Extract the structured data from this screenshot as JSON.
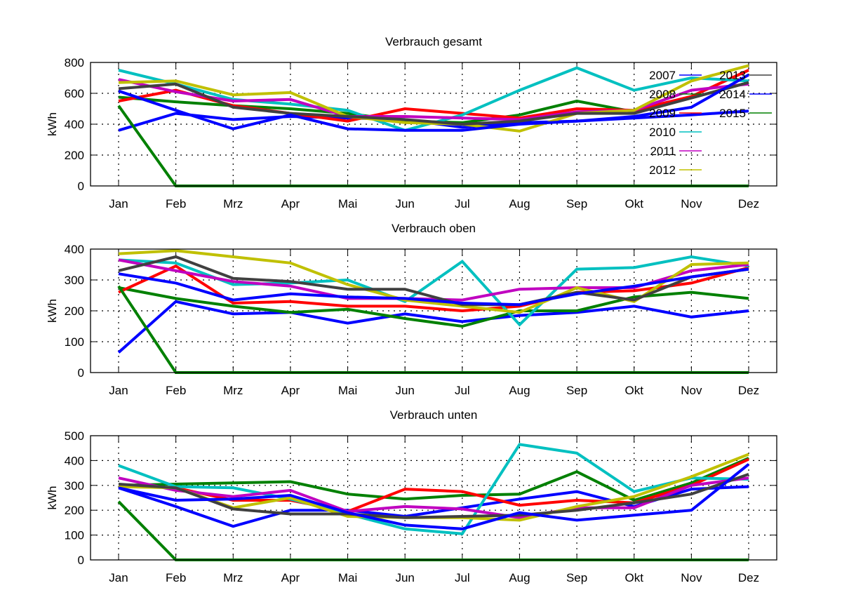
{
  "chart_data": [
    {
      "type": "line",
      "title": "Verbrauch gesamt",
      "ylabel": "kWh",
      "ylim": [
        0,
        800
      ],
      "yticks": [
        0,
        200,
        400,
        600,
        800
      ],
      "grid": true,
      "legend_position": "top-right",
      "categories": [
        "Jan",
        "Feb",
        "Mrz",
        "Apr",
        "Mai",
        "Jun",
        "Jul",
        "Aug",
        "Sep",
        "Okt",
        "Nov",
        "Dez"
      ],
      "series": [
        {
          "name": "2007",
          "color": "#0000ff",
          "values": [
            360,
            470,
            430,
            450,
            440,
            430,
            380,
            410,
            420,
            440,
            460,
            485
          ]
        },
        {
          "name": "2008",
          "color": "#008000",
          "values": [
            575,
            545,
            520,
            500,
            470,
            420,
            410,
            460,
            550,
            480,
            570,
            670
          ]
        },
        {
          "name": "2009",
          "color": "#ff0000",
          "values": [
            550,
            620,
            520,
            470,
            420,
            500,
            470,
            440,
            500,
            490,
            580,
            750
          ]
        },
        {
          "name": "2010",
          "color": "#00c0c0",
          "values": [
            750,
            660,
            560,
            530,
            490,
            360,
            460,
            620,
            765,
            620,
            700,
            680
          ]
        },
        {
          "name": "2011",
          "color": "#c000c0",
          "values": [
            690,
            610,
            550,
            560,
            450,
            450,
            440,
            430,
            480,
            490,
            620,
            660
          ]
        },
        {
          "name": "2012",
          "color": "#c0c000",
          "values": [
            670,
            680,
            590,
            605,
            450,
            410,
            400,
            355,
            470,
            490,
            680,
            780
          ]
        },
        {
          "name": "2013",
          "color": "#404040",
          "values": [
            630,
            660,
            510,
            470,
            450,
            430,
            400,
            420,
            470,
            470,
            570,
            670
          ]
        },
        {
          "name": "2014",
          "color": "#0000ff",
          "values": [
            615,
            490,
            370,
            460,
            370,
            360,
            360,
            400,
            420,
            450,
            510,
            720
          ]
        },
        {
          "name": "2015",
          "color": "#008000",
          "values": [
            520,
            0,
            0,
            0,
            0,
            0,
            0,
            0,
            0,
            0,
            0,
            0
          ]
        }
      ]
    },
    {
      "type": "line",
      "title": "Verbrauch oben",
      "ylabel": "kWh",
      "ylim": [
        0,
        400
      ],
      "yticks": [
        0,
        100,
        200,
        300,
        400
      ],
      "grid": true,
      "categories": [
        "Jan",
        "Feb",
        "Mrz",
        "Apr",
        "Mai",
        "Jun",
        "Jul",
        "Aug",
        "Sep",
        "Okt",
        "Nov",
        "Dez"
      ],
      "series": [
        {
          "name": "2007",
          "color": "#0000ff",
          "values": [
            65,
            230,
            190,
            195,
            160,
            190,
            165,
            185,
            195,
            215,
            180,
            200
          ]
        },
        {
          "name": "2008",
          "color": "#008000",
          "values": [
            275,
            240,
            215,
            195,
            205,
            175,
            150,
            200,
            200,
            245,
            260,
            240
          ]
        },
        {
          "name": "2009",
          "color": "#ff0000",
          "values": [
            260,
            345,
            225,
            230,
            215,
            215,
            200,
            215,
            260,
            265,
            290,
            340
          ]
        },
        {
          "name": "2010",
          "color": "#00c0c0",
          "values": [
            365,
            355,
            285,
            290,
            300,
            230,
            360,
            155,
            335,
            340,
            375,
            345
          ]
        },
        {
          "name": "2011",
          "color": "#c000c0",
          "values": [
            365,
            330,
            295,
            280,
            240,
            240,
            235,
            270,
            275,
            275,
            330,
            350
          ]
        },
        {
          "name": "2012",
          "color": "#c0c000",
          "values": [
            385,
            395,
            375,
            355,
            285,
            235,
            215,
            195,
            275,
            230,
            350,
            355
          ]
        },
        {
          "name": "2013",
          "color": "#404040",
          "values": [
            330,
            375,
            305,
            295,
            270,
            270,
            220,
            220,
            260,
            235,
            310,
            335
          ]
        },
        {
          "name": "2014",
          "color": "#0000ff",
          "values": [
            320,
            290,
            235,
            255,
            245,
            240,
            225,
            220,
            255,
            280,
            310,
            335
          ]
        },
        {
          "name": "2015",
          "color": "#008000",
          "values": [
            280,
            0,
            0,
            0,
            0,
            0,
            0,
            0,
            0,
            0,
            0,
            0
          ]
        }
      ]
    },
    {
      "type": "line",
      "title": "Verbrauch unten",
      "ylabel": "kWh",
      "ylim": [
        0,
        500
      ],
      "yticks": [
        0,
        100,
        200,
        300,
        400,
        500
      ],
      "grid": true,
      "categories": [
        "Jan",
        "Feb",
        "Mrz",
        "Apr",
        "Mai",
        "Jun",
        "Jul",
        "Aug",
        "Sep",
        "Okt",
        "Nov",
        "Dez"
      ],
      "series": [
        {
          "name": "2007",
          "color": "#0000ff",
          "values": [
            290,
            215,
            135,
            200,
            200,
            175,
            210,
            245,
            275,
            215,
            285,
            295
          ]
        },
        {
          "name": "2008",
          "color": "#008000",
          "values": [
            300,
            305,
            310,
            315,
            265,
            245,
            260,
            265,
            355,
            240,
            310,
            410
          ]
        },
        {
          "name": "2009",
          "color": "#ff0000",
          "values": [
            300,
            290,
            240,
            240,
            195,
            285,
            275,
            220,
            240,
            230,
            300,
            405
          ]
        },
        {
          "name": "2010",
          "color": "#00c0c0",
          "values": [
            380,
            295,
            290,
            245,
            185,
            125,
            105,
            465,
            430,
            275,
            330,
            325
          ]
        },
        {
          "name": "2011",
          "color": "#c000c0",
          "values": [
            330,
            280,
            255,
            280,
            195,
            215,
            205,
            170,
            210,
            210,
            300,
            330
          ]
        },
        {
          "name": "2012",
          "color": "#c0c000",
          "values": [
            295,
            290,
            210,
            250,
            175,
            170,
            170,
            160,
            215,
            255,
            335,
            425
          ]
        },
        {
          "name": "2013",
          "color": "#404040",
          "values": [
            305,
            290,
            205,
            185,
            185,
            170,
            175,
            180,
            200,
            230,
            265,
            345
          ]
        },
        {
          "name": "2014",
          "color": "#0000ff",
          "values": [
            290,
            240,
            245,
            260,
            190,
            140,
            125,
            190,
            160,
            180,
            200,
            385
          ]
        },
        {
          "name": "2015",
          "color": "#008000",
          "values": [
            235,
            0,
            0,
            0,
            0,
            0,
            0,
            0,
            0,
            0,
            0,
            0
          ]
        }
      ]
    }
  ]
}
